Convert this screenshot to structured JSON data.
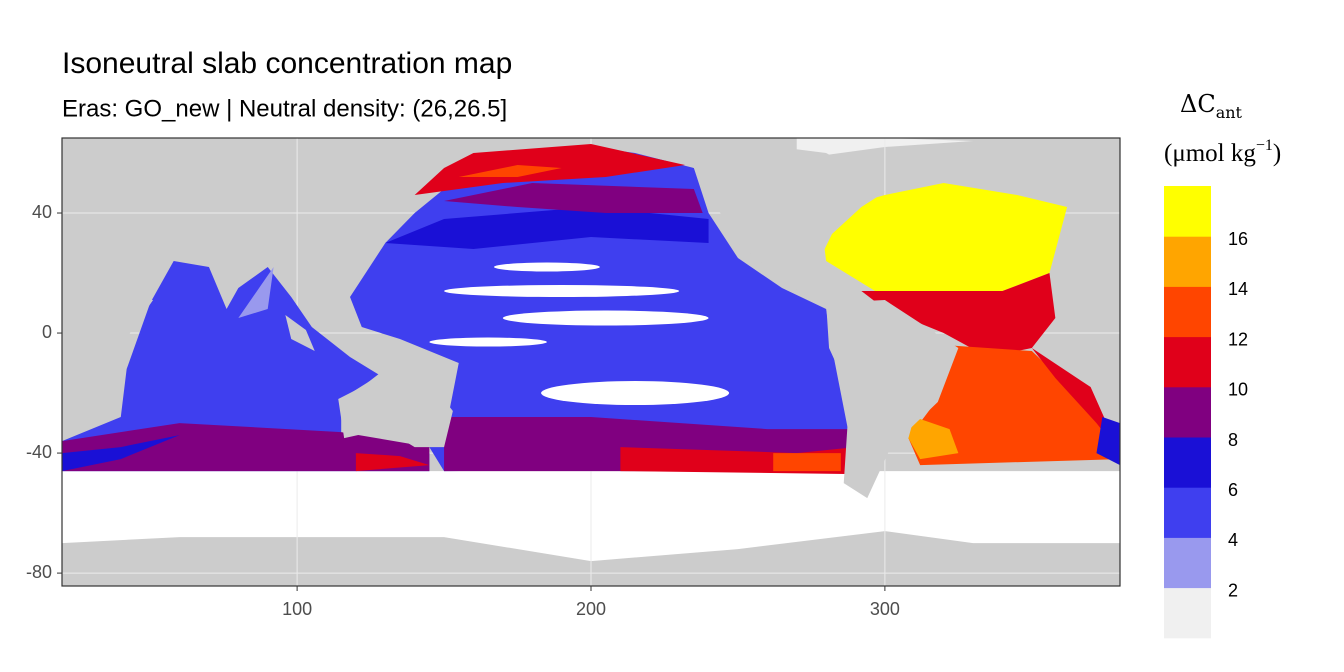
{
  "chart_data": {
    "type": "map",
    "title": "Isoneutral slab concentration map",
    "subtitle": "Eras: GO_new | Neutral density: (26,26.5]",
    "legend_title": {
      "main": "ΔC",
      "sub": "ant"
    },
    "legend_unit": {
      "main": "(μmol kg",
      "sup": "−1",
      "end": ")"
    },
    "xlim": [
      20,
      380
    ],
    "ylim": [
      -84.3,
      65
    ],
    "xticks": [
      100,
      200,
      300
    ],
    "yticks": [
      -80,
      -40,
      0,
      40
    ],
    "grid": true,
    "legend_breaks": [
      2,
      4,
      6,
      8,
      10,
      12,
      14,
      16
    ],
    "legend_colors": [
      "#f0f0f0",
      "#9999ee",
      "#3f3fef",
      "#1a10d6",
      "#800080",
      "#e0001a",
      "#ff4500",
      "#ffa500",
      "#ffff00"
    ],
    "land_color": "#cccccc"
  }
}
